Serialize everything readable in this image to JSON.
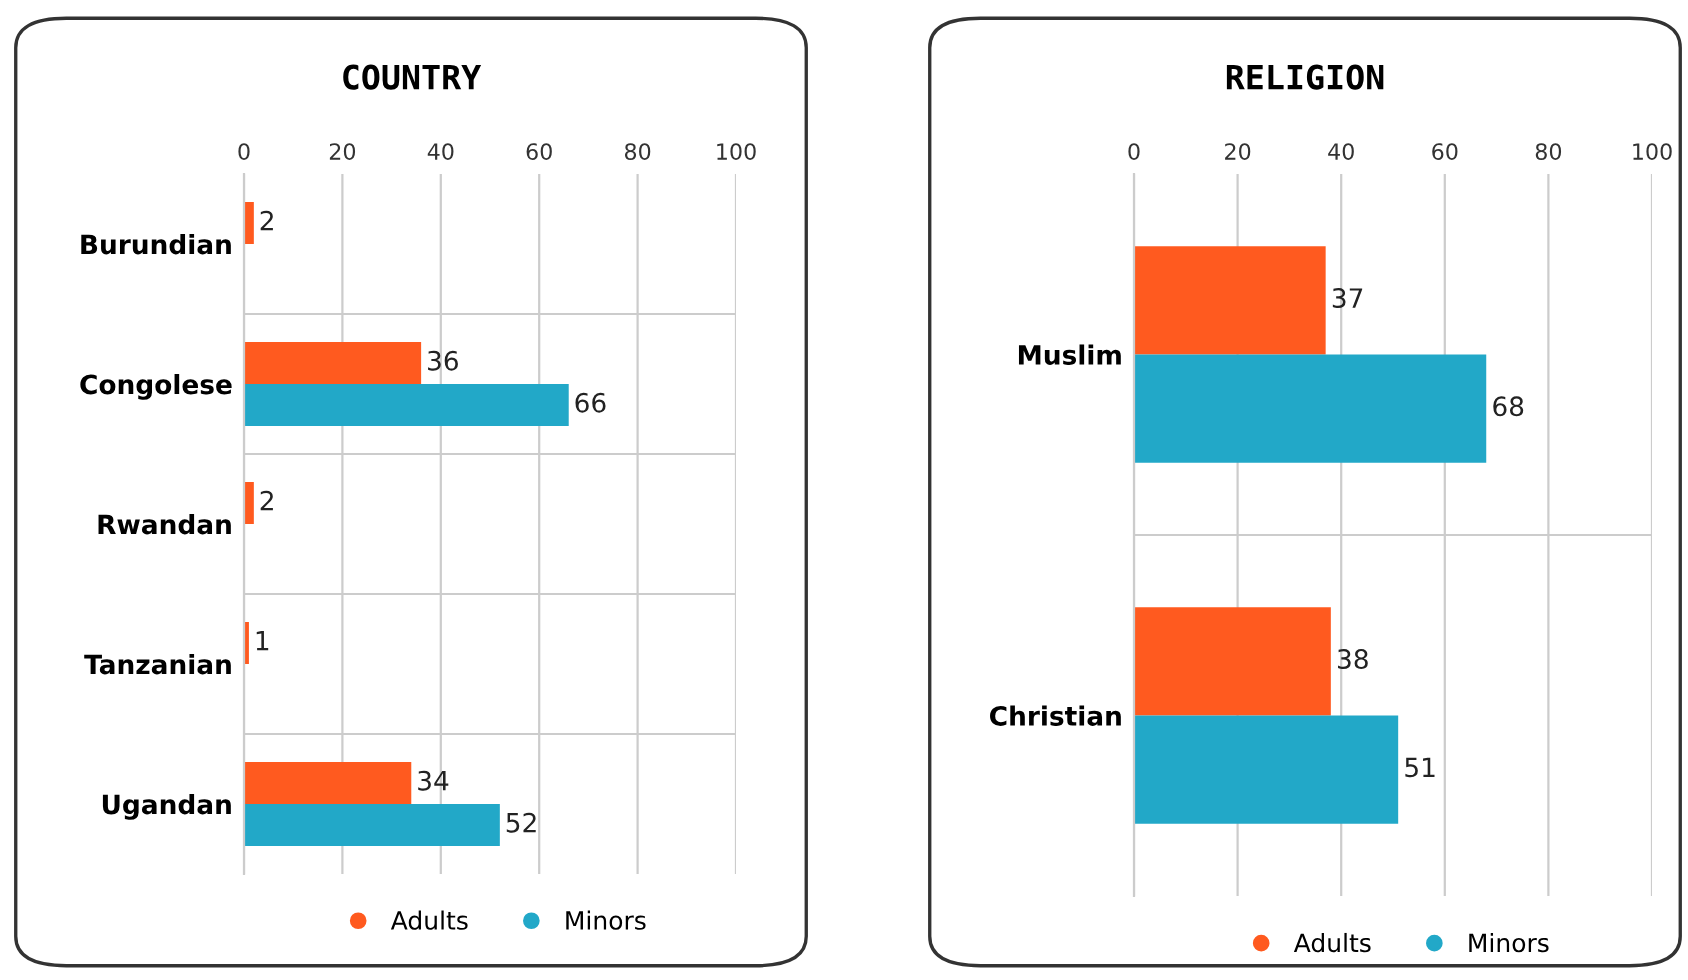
{
  "chart_data": [
    {
      "type": "bar",
      "orientation": "horizontal",
      "title": "COUNTRY",
      "categories": [
        "Burundian",
        "Congolese",
        "Rwandan",
        "Tanzanian",
        "Ugandan"
      ],
      "series": [
        {
          "name": "Adults",
          "color": "#ff5a1f",
          "values": [
            2,
            36,
            2,
            1,
            34
          ]
        },
        {
          "name": "Minors",
          "color": "#22a8c8",
          "values": [
            null,
            66,
            null,
            null,
            52
          ]
        }
      ],
      "xlim": [
        0,
        100
      ],
      "xticks": [
        0,
        20,
        40,
        60,
        80,
        100
      ],
      "grid": true,
      "legend": "bottom",
      "data_labels": true
    },
    {
      "type": "bar",
      "orientation": "horizontal",
      "title": "RELIGION",
      "categories": [
        "Muslim",
        "Christian"
      ],
      "series": [
        {
          "name": "Adults",
          "color": "#ff5a1f",
          "values": [
            37,
            38
          ]
        },
        {
          "name": "Minors",
          "color": "#22a8c8",
          "values": [
            68,
            51
          ]
        }
      ],
      "xlim": [
        0,
        100
      ],
      "xticks": [
        0,
        20,
        40,
        60,
        80,
        100
      ],
      "grid": true,
      "legend": "bottom",
      "data_labels": true
    }
  ]
}
